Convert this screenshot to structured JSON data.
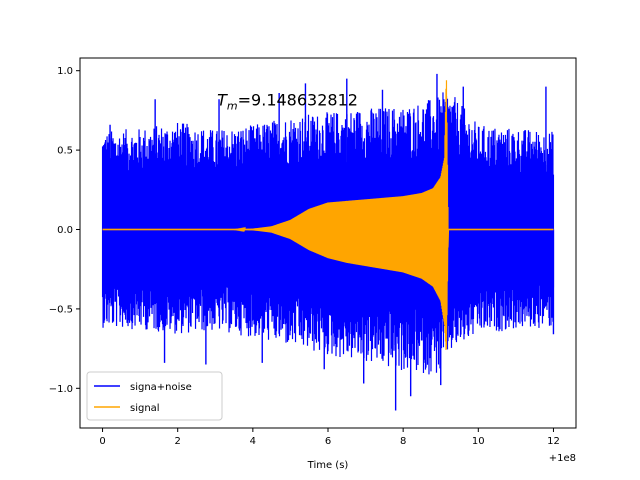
{
  "chart_data": {
    "type": "line",
    "title": "",
    "xlabel": "Time (s)",
    "ylabel": "",
    "x_offset_label": "+1e8",
    "xlim": [
      -0.6,
      12.6
    ],
    "ylim": [
      -1.25,
      1.08
    ],
    "xticks": [
      0,
      2,
      4,
      6,
      8,
      10,
      12
    ],
    "xtick_labels": [
      "0",
      "2",
      "4",
      "6",
      "8",
      "10",
      "12"
    ],
    "yticks": [
      -1.0,
      -0.5,
      0.0,
      0.5,
      1.0
    ],
    "ytick_labels": [
      "−1.0",
      "−0.5",
      "0.0",
      "0.5",
      "1.0"
    ],
    "grid": false,
    "legend_position": "lower-left",
    "annotation": {
      "text_main": "T",
      "text_sub": "m",
      "text_rest": "=9.148632812",
      "x": 3.05,
      "y": 0.78
    },
    "series": [
      {
        "name": "signa+noise",
        "color": "#0000ff",
        "x_range": [
          0,
          12
        ],
        "envelope": {
          "x": [
            0,
            1,
            2,
            3,
            4,
            5,
            6,
            7,
            8,
            9,
            9.15,
            10,
            11,
            12
          ],
          "upper": [
            0.62,
            0.64,
            0.68,
            0.63,
            0.66,
            0.72,
            0.74,
            0.77,
            0.78,
            0.84,
            0.9,
            0.66,
            0.64,
            0.62
          ],
          "lower": [
            -0.62,
            -0.63,
            -0.66,
            -0.64,
            -0.68,
            -0.74,
            -0.8,
            -0.84,
            -0.9,
            -0.92,
            -0.8,
            -0.66,
            -0.63,
            -0.62
          ]
        },
        "peaks": [
          [
            0.2,
            0.66
          ],
          [
            1.4,
            0.82
          ],
          [
            1.65,
            -0.84
          ],
          [
            2.75,
            -0.85
          ],
          [
            3.1,
            0.82
          ],
          [
            4.25,
            -0.84
          ],
          [
            4.7,
            0.86
          ],
          [
            5.4,
            0.92
          ],
          [
            5.9,
            -0.88
          ],
          [
            6.5,
            0.95
          ],
          [
            6.95,
            -0.97
          ],
          [
            7.45,
            0.88
          ],
          [
            7.8,
            -1.14
          ],
          [
            8.2,
            -1.05
          ],
          [
            8.9,
            0.98
          ],
          [
            9.0,
            -0.98
          ],
          [
            9.6,
            0.9
          ],
          [
            11.8,
            0.9
          ],
          [
            12.0,
            -0.66
          ]
        ]
      },
      {
        "name": "signal",
        "color": "#ffa500",
        "x_range": [
          0,
          12
        ],
        "envelope": {
          "x": [
            0,
            3.5,
            4.0,
            4.5,
            5.0,
            5.5,
            6.0,
            6.5,
            7.0,
            7.5,
            8.0,
            8.5,
            8.8,
            9.0,
            9.1,
            9.15,
            9.2,
            9.3,
            12
          ],
          "upper": [
            0.0,
            0.0,
            0.005,
            0.02,
            0.06,
            0.13,
            0.17,
            0.18,
            0.19,
            0.2,
            0.21,
            0.23,
            0.26,
            0.33,
            0.45,
            1.0,
            0.0,
            0.0,
            0.0
          ],
          "lower": [
            0.0,
            0.0,
            -0.005,
            -0.02,
            -0.06,
            -0.13,
            -0.18,
            -0.21,
            -0.23,
            -0.25,
            -0.27,
            -0.31,
            -0.36,
            -0.45,
            -0.6,
            -0.8,
            0.0,
            0.0,
            0.0
          ]
        }
      }
    ]
  }
}
